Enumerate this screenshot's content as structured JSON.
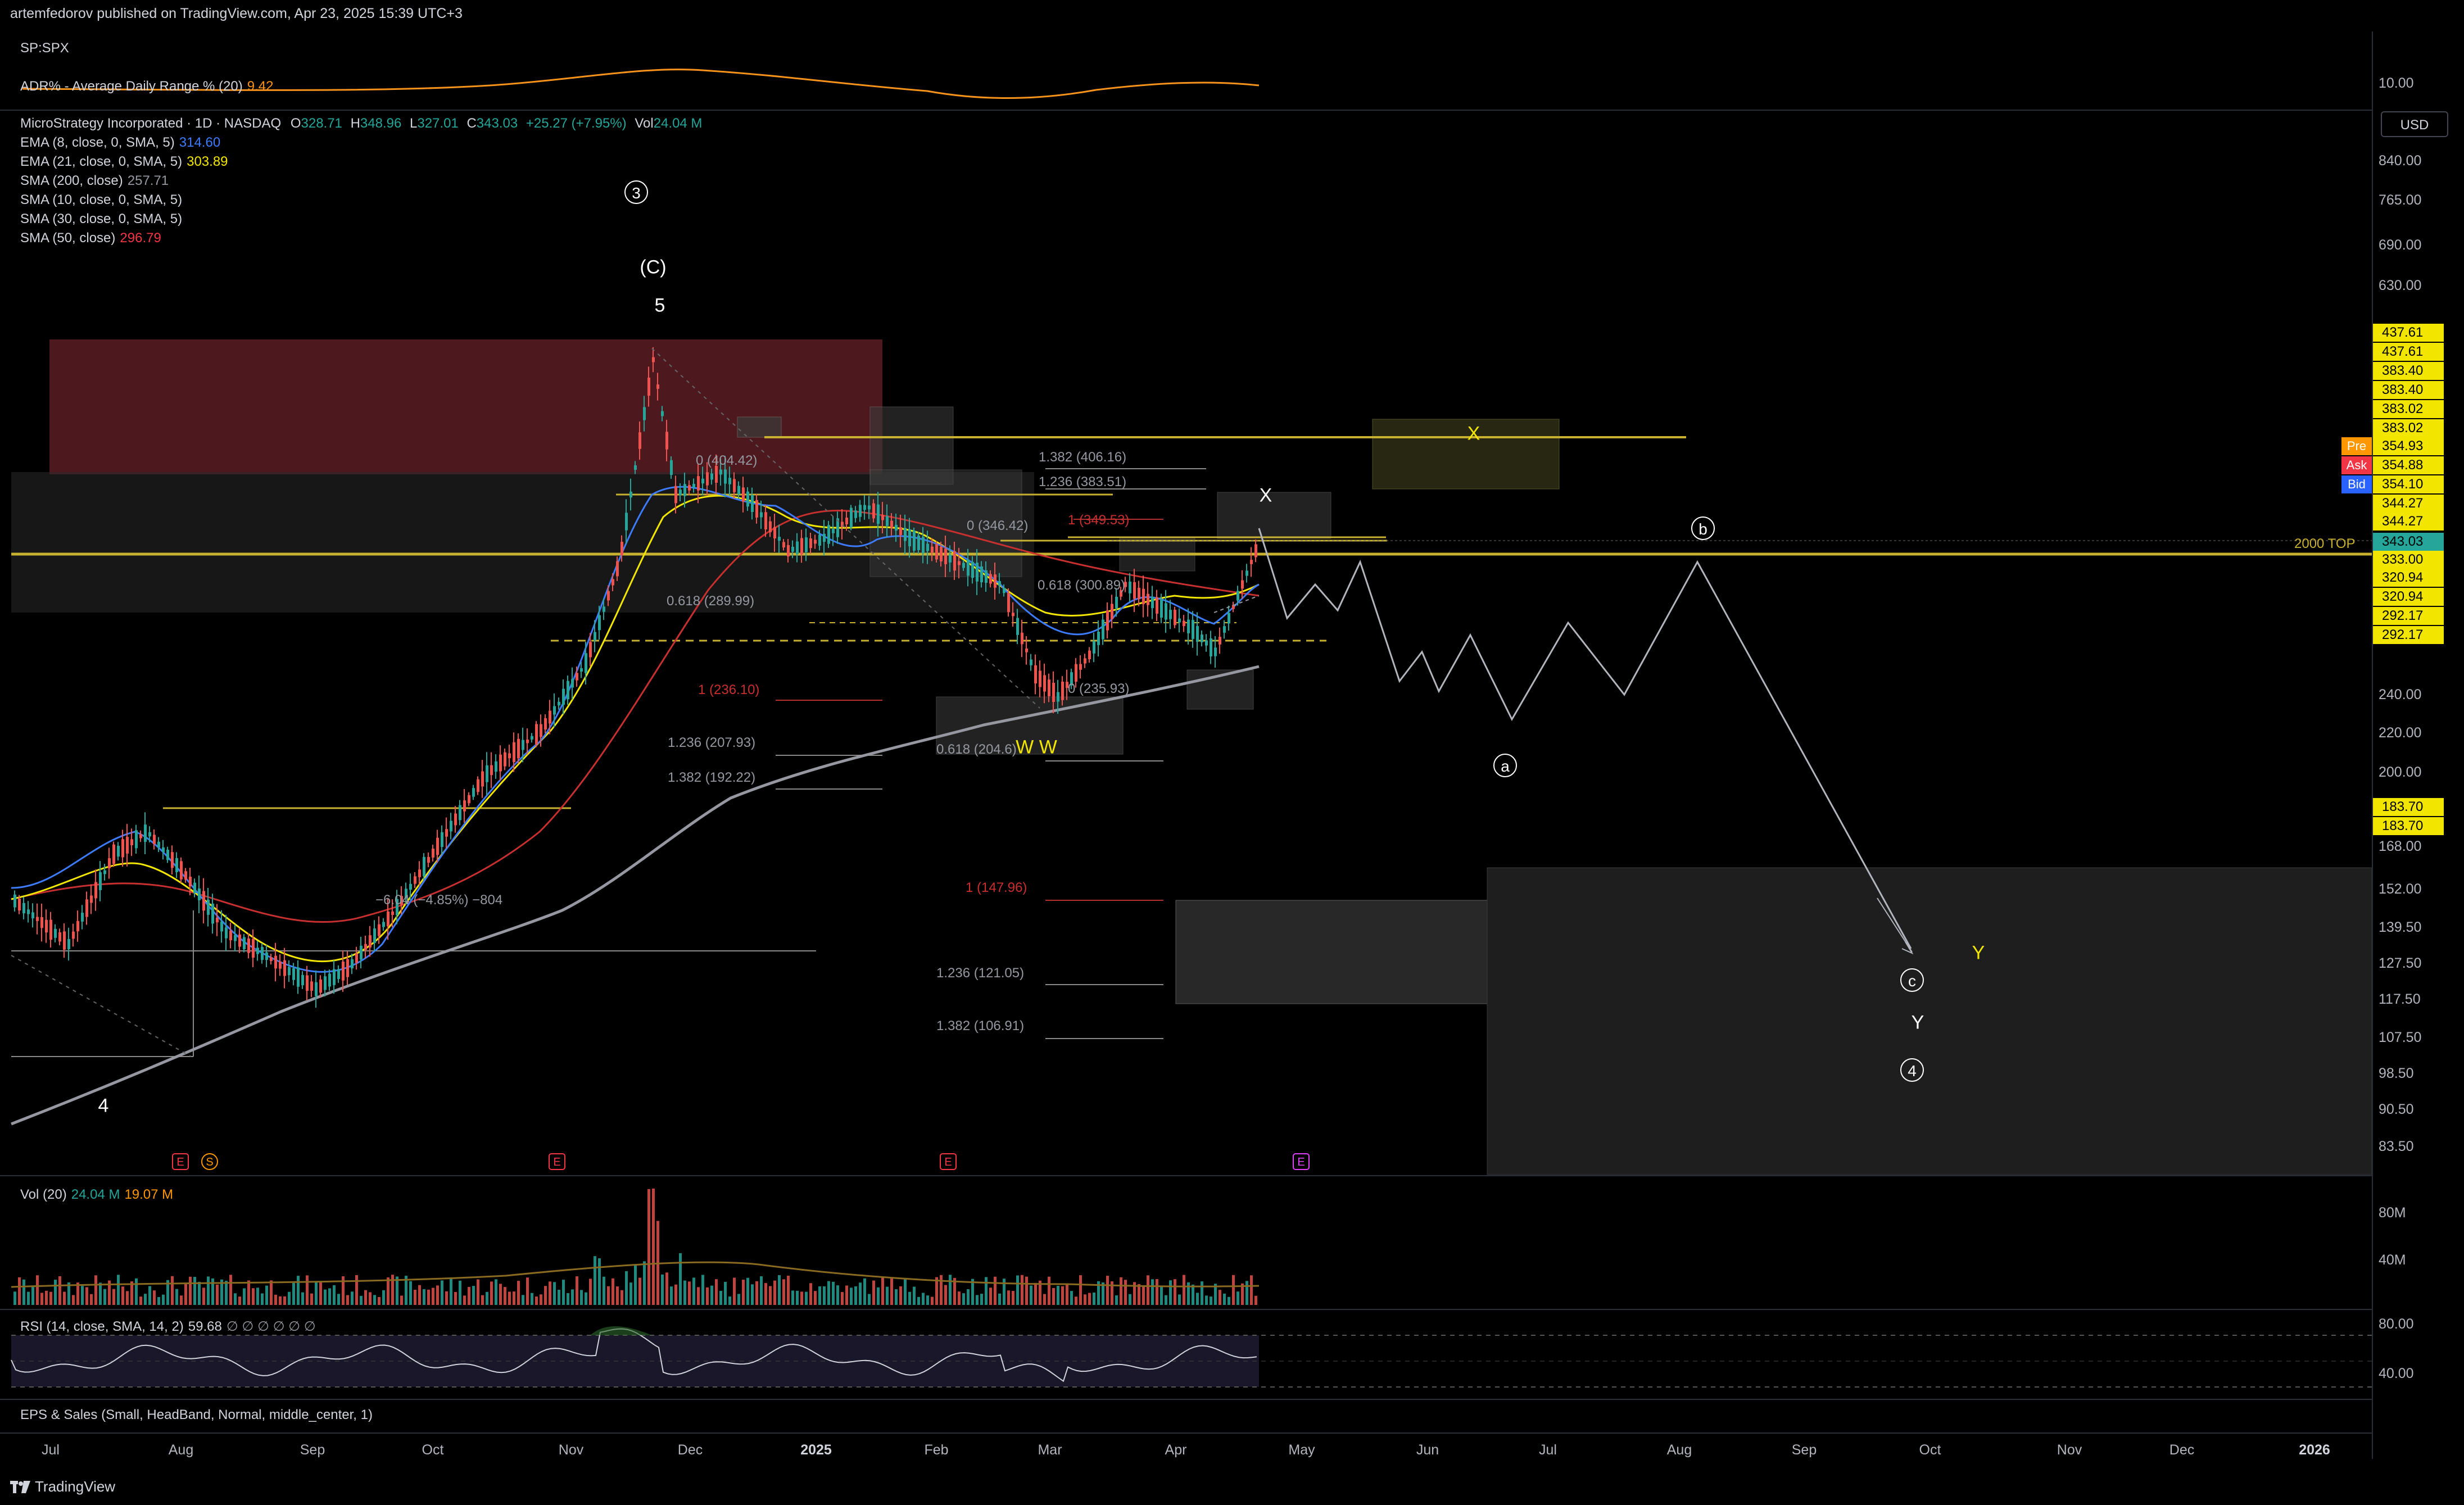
{
  "header": {
    "publisher": "artemfedorov published on TradingView.com, Apr 23, 2025 15:39 UTC+3"
  },
  "adr_pane": {
    "symbol": "SP:SPX",
    "label": "ADR% - Average Daily Range % (20)",
    "value": "9.42",
    "axis_label": "10.00",
    "line_color": "#f7931a"
  },
  "main_legend": {
    "title": "MicroStrategy Incorporated · 1D · NASDAQ",
    "o_label": "O",
    "o": "328.71",
    "h_label": "H",
    "h": "348.96",
    "l_label": "L",
    "l": "327.01",
    "c_label": "C",
    "c": "343.03",
    "change": "+25.27 (+7.95%)",
    "vol_label": "Vol",
    "vol": "24.04 M",
    "indicators": [
      {
        "label": "EMA (8, close, 0, SMA, 5)",
        "value": "314.60",
        "color": "#3d7bff"
      },
      {
        "label": "EMA (21, close, 0, SMA, 5)",
        "value": "303.89",
        "color": "#f2e600"
      },
      {
        "label": "SMA (200, close)",
        "value": "257.71",
        "color": "#9598a1"
      },
      {
        "label": "SMA (10, close, 0, SMA, 5)",
        "value": "",
        "color": "#d1d4dc"
      },
      {
        "label": "SMA (30, close, 0, SMA, 5)",
        "value": "",
        "color": "#d1d4dc"
      },
      {
        "label": "SMA (50, close)",
        "value": "296.79",
        "color": "#f23645"
      }
    ]
  },
  "currency_button": "USD",
  "price_axis": {
    "labels": [
      "840.00",
      "765.00",
      "690.00",
      "630.00",
      "240.00",
      "220.00",
      "200.00",
      "168.00",
      "152.00",
      "139.50",
      "127.50",
      "117.50",
      "107.50",
      "98.50",
      "90.50",
      "83.50"
    ],
    "tags": [
      {
        "text": "437.61",
        "bg": "#f2e600"
      },
      {
        "text": "437.61",
        "bg": "#f2e600"
      },
      {
        "text": "383.40",
        "bg": "#f2e600"
      },
      {
        "text": "383.40",
        "bg": "#f2e600"
      },
      {
        "text": "383.02",
        "bg": "#f2e600"
      },
      {
        "text": "383.02",
        "bg": "#f2e600"
      },
      {
        "text": "354.93",
        "bg": "#f2e600",
        "prefix": "Pre",
        "prefix_bg": "#ff9800"
      },
      {
        "text": "354.88",
        "bg": "#f2e600",
        "prefix": "Ask",
        "prefix_bg": "#f23645"
      },
      {
        "text": "354.10",
        "bg": "#f2e600",
        "prefix": "Bid",
        "prefix_bg": "#2962ff"
      },
      {
        "text": "344.27",
        "bg": "#f2e600"
      },
      {
        "text": "344.27",
        "bg": "#f2e600"
      },
      {
        "text": "343.03",
        "bg": "#26a69a"
      },
      {
        "text": "333.00",
        "bg": "#f2e600"
      },
      {
        "text": "320.94",
        "bg": "#f2e600"
      },
      {
        "text": "320.94",
        "bg": "#f2e600"
      },
      {
        "text": "292.17",
        "bg": "#f2e600"
      },
      {
        "text": "292.17",
        "bg": "#f2e600"
      },
      {
        "text": "183.70",
        "bg": "#f2e600"
      },
      {
        "text": "183.70",
        "bg": "#f2e600"
      }
    ],
    "line_label": "2000 TOP"
  },
  "waves": {
    "w3": "3",
    "wC": "(C)",
    "w5": "5",
    "w4": "4",
    "X1": "X",
    "X2": "X",
    "Y1": "Y",
    "Y2": "Y",
    "WW": "W W",
    "a": "a",
    "b": "b",
    "c": "c",
    "w4c": "4"
  },
  "fib_labels": {
    "f1": "0 (404.42)",
    "f2": "0.618 (289.99)",
    "f3": "1 (236.10)",
    "f4": "1.236 (207.93)",
    "f5": "1.382 (192.22)",
    "f6": "1.382 (406.16)",
    "f7": "1.236 (383.51)",
    "f8": "0 (346.42)",
    "f9": "1 (349.53)",
    "f10": "0.618 (300.89)",
    "f11": "0 (235.93)",
    "f12": "0.618 (204.6)",
    "f13": "1 (147.96)",
    "f14": "1.236 (121.05)",
    "f15": "1.382 (106.91)",
    "f16": "−6.04 (−4.85%) −804"
  },
  "events": [
    {
      "text": "E",
      "color": "#f23645"
    },
    {
      "text": "S",
      "color": "#ff9800"
    },
    {
      "text": "E",
      "color": "#f23645"
    },
    {
      "text": "E",
      "color": "#f23645"
    },
    {
      "text": "E",
      "color": "#e040fb"
    }
  ],
  "volume_pane": {
    "label": "Vol (20)",
    "value": "24.04 M",
    "ma": "19.07 M",
    "axis": [
      "80M",
      "40M"
    ]
  },
  "rsi_pane": {
    "label": "RSI (14, close, SMA, 14, 2)",
    "value": "59.68",
    "extra": "∅ ∅ ∅ ∅ ∅ ∅",
    "axis": [
      "80.00",
      "40.00"
    ]
  },
  "eps_pane": {
    "label": "EPS & Sales (Small, HeadBand, Normal, middle_center, 1)"
  },
  "time_axis": [
    "Jul",
    "Aug",
    "Sep",
    "Oct",
    "Nov",
    "Dec",
    "2025",
    "Feb",
    "Mar",
    "Apr",
    "May",
    "Jun",
    "Jul",
    "Aug",
    "Sep",
    "Oct",
    "Nov",
    "Dec",
    "2026"
  ],
  "footer": {
    "brand": "TradingView"
  }
}
